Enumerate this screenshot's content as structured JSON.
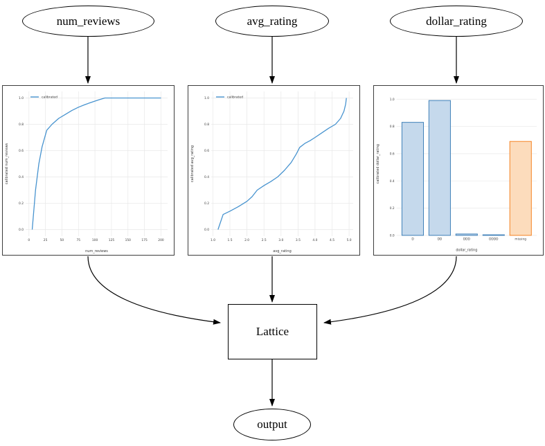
{
  "diagram": {
    "nodes": {
      "num_reviews": {
        "label": "num_reviews"
      },
      "avg_rating": {
        "label": "avg_rating"
      },
      "dollar_rating": {
        "label": "dollar_rating"
      },
      "lattice": {
        "label": "Lattice"
      },
      "output": {
        "label": "output"
      }
    }
  },
  "colors": {
    "line_blue": "#4793cf",
    "bar_blue_fill": "#c5d9ec",
    "bar_blue_edge": "#3d7fb8",
    "bar_orange_fill": "#fcdcbc",
    "bar_orange_edge": "#f58220",
    "grid": "#e8e8e8",
    "tick_text": "#3a3a3a",
    "edge_black": "#000000"
  },
  "chart_data": [
    {
      "type": "line",
      "title": "",
      "xlabel": "num_reviews",
      "ylabel": "calibrated num_reviews",
      "legend": [
        "calibrated"
      ],
      "legend_position": "upper left",
      "grid": true,
      "xlim": [
        -5,
        210
      ],
      "ylim": [
        -0.05,
        1.05
      ],
      "xticks": [
        0,
        25,
        50,
        75,
        100,
        125,
        150,
        175,
        200
      ],
      "xtick_labels": [
        "0",
        "25",
        "50",
        "75",
        "100",
        "125",
        "150",
        "175",
        "200"
      ],
      "yticks": [
        0.0,
        0.2,
        0.4,
        0.6,
        0.8,
        1.0
      ],
      "ytick_labels": [
        "0.0",
        "0.2",
        "0.4",
        "0.6",
        "0.8",
        "1.0"
      ],
      "series": [
        {
          "name": "calibrated",
          "x": [
            5,
            10,
            15,
            20,
            27,
            35,
            45,
            55,
            65,
            75,
            85,
            95,
            105,
            115,
            200
          ],
          "y": [
            0.0,
            0.3,
            0.5,
            0.63,
            0.755,
            0.8,
            0.845,
            0.875,
            0.905,
            0.93,
            0.95,
            0.968,
            0.985,
            1.0,
            1.0
          ]
        }
      ]
    },
    {
      "type": "line",
      "title": "",
      "xlabel": "avg_rating",
      "ylabel": "calibrated avg_rating",
      "legend": [
        "calibrated"
      ],
      "legend_position": "upper left",
      "grid": true,
      "xlim": [
        0.95,
        5.12
      ],
      "ylim": [
        -0.05,
        1.05
      ],
      "xticks": [
        1.0,
        1.5,
        2.0,
        2.5,
        3.0,
        3.5,
        4.0,
        4.5,
        5.0
      ],
      "xtick_labels": [
        "1.0",
        "1.5",
        "2.0",
        "2.5",
        "3.0",
        "3.5",
        "4.0",
        "4.5",
        "5.0"
      ],
      "yticks": [
        0.0,
        0.2,
        0.4,
        0.6,
        0.8,
        1.0
      ],
      "ytick_labels": [
        "0.0",
        "0.2",
        "0.4",
        "0.6",
        "0.8",
        "1.0"
      ],
      "series": [
        {
          "name": "calibrated",
          "x": [
            1.15,
            1.3,
            1.5,
            1.75,
            2.0,
            2.15,
            2.3,
            2.5,
            2.7,
            2.9,
            3.1,
            3.3,
            3.45,
            3.55,
            3.7,
            3.85,
            4.0,
            4.2,
            4.4,
            4.6,
            4.75,
            4.85,
            4.9,
            4.92
          ],
          "y": [
            0.0,
            0.115,
            0.14,
            0.175,
            0.215,
            0.25,
            0.3,
            0.335,
            0.365,
            0.4,
            0.45,
            0.51,
            0.575,
            0.625,
            0.655,
            0.675,
            0.7,
            0.735,
            0.77,
            0.8,
            0.845,
            0.9,
            0.955,
            1.0
          ]
        }
      ]
    },
    {
      "type": "bar",
      "title": "",
      "xlabel": "dollar_rating",
      "ylabel": "calibrated dollar_rating",
      "grid": true,
      "xlim": [
        -0.6,
        4.6
      ],
      "ylim": [
        0,
        1.05
      ],
      "categories": [
        "D",
        "DD",
        "DDD",
        "DDDD",
        "missing"
      ],
      "values": [
        0.83,
        0.99,
        0.01,
        0.004,
        0.69
      ],
      "bar_styles": [
        "blue",
        "blue",
        "blue",
        "blue",
        "orange"
      ],
      "yticks": [
        0.0,
        0.2,
        0.4,
        0.6,
        0.8,
        1.0
      ],
      "ytick_labels": [
        "0.0",
        "0.2",
        "0.4",
        "0.6",
        "0.8",
        "1.0"
      ]
    }
  ]
}
